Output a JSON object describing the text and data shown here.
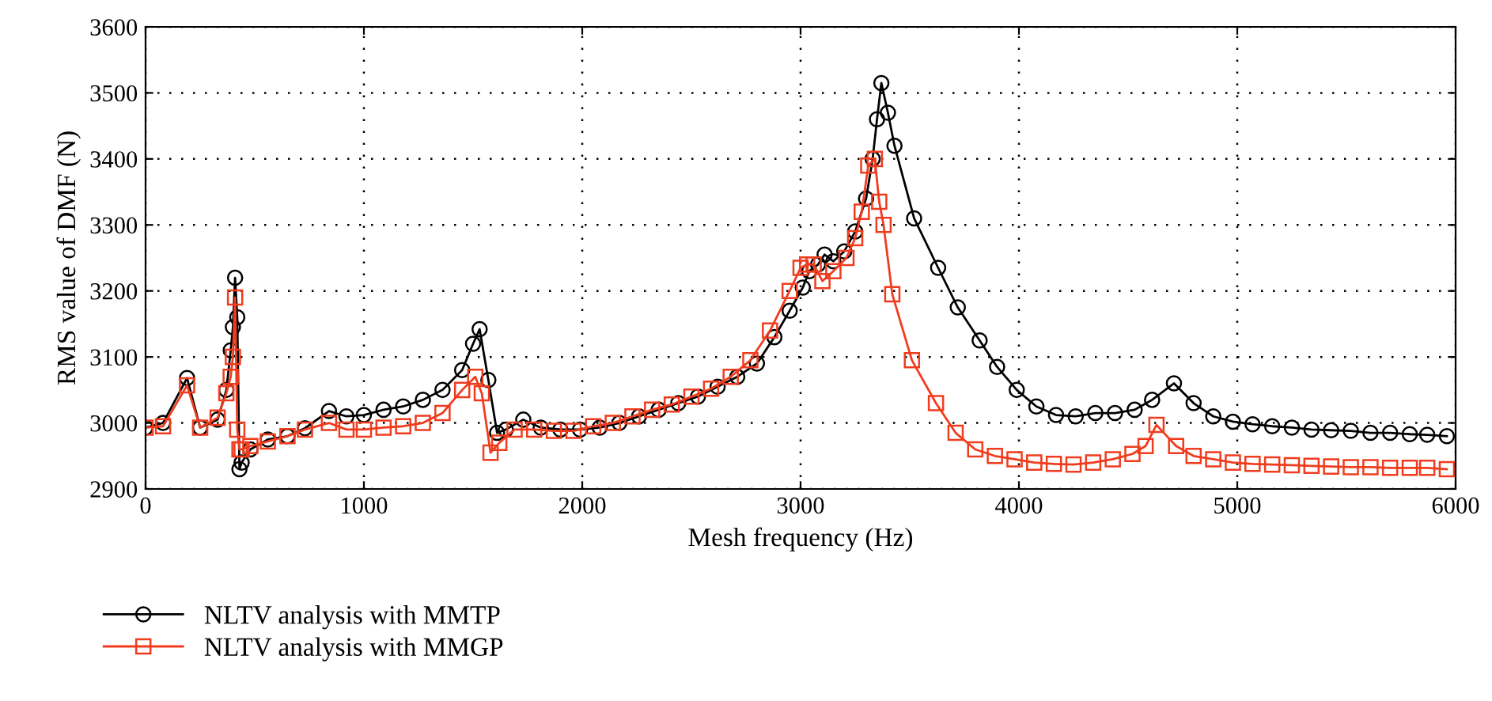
{
  "chart_data": {
    "type": "line",
    "xlabel": "Mesh frequency (Hz)",
    "ylabel": "RMS value of DMF (N)",
    "xlim": [
      0,
      6000
    ],
    "xticks": [
      0,
      1000,
      2000,
      3000,
      4000,
      5000,
      6000
    ],
    "ylim": [
      2900,
      3600
    ],
    "yticks": [
      2900,
      3000,
      3100,
      3200,
      3300,
      3400,
      3500,
      3600
    ],
    "grid": true,
    "legend": "bottom",
    "line_style": "solid",
    "series": [
      {
        "name": "NLTV analysis with MMTP",
        "color": "#000000",
        "marker": "circle",
        "x": [
          0,
          80,
          190,
          250,
          330,
          370,
          390,
          400,
          410,
          420,
          430,
          440,
          480,
          560,
          650,
          730,
          840,
          920,
          1000,
          1090,
          1180,
          1270,
          1360,
          1450,
          1500,
          1530,
          1570,
          1610,
          1650,
          1730,
          1810,
          1900,
          1990,
          2080,
          2170,
          2260,
          2350,
          2440,
          2530,
          2620,
          2710,
          2800,
          2880,
          2950,
          3010,
          3040,
          3080,
          3110,
          3150,
          3200,
          3250,
          3300,
          3330,
          3350,
          3370,
          3400,
          3430,
          3520,
          3630,
          3720,
          3820,
          3900,
          3990,
          4080,
          4170,
          4260,
          4350,
          4440,
          4530,
          4610,
          4710,
          4800,
          4890,
          4980,
          5070,
          5160,
          5250,
          5340,
          5430,
          5520,
          5610,
          5700,
          5790,
          5870,
          5960
        ],
        "values": [
          2993,
          3000,
          3068,
          2993,
          3005,
          3050,
          3110,
          3145,
          3220,
          3160,
          2930,
          2940,
          2960,
          2975,
          2980,
          2992,
          3018,
          3010,
          3012,
          3020,
          3025,
          3035,
          3050,
          3080,
          3120,
          3142,
          3065,
          2985,
          2990,
          3005,
          2993,
          2990,
          2990,
          2993,
          3000,
          3010,
          3020,
          3030,
          3040,
          3055,
          3070,
          3090,
          3130,
          3170,
          3205,
          3230,
          3240,
          3255,
          3245,
          3260,
          3290,
          3340,
          3400,
          3460,
          3515,
          3470,
          3420,
          3310,
          3235,
          3175,
          3125,
          3085,
          3050,
          3025,
          3012,
          3010,
          3015,
          3015,
          3020,
          3035,
          3060,
          3030,
          3010,
          3002,
          2998,
          2995,
          2993,
          2990,
          2989,
          2988,
          2985,
          2985,
          2983,
          2982,
          2980
        ]
      },
      {
        "name": "NLTV analysis with MMGP",
        "color": "#f03c1e",
        "marker": "square",
        "x": [
          0,
          80,
          190,
          250,
          330,
          370,
          390,
          400,
          410,
          420,
          430,
          440,
          480,
          560,
          650,
          730,
          840,
          920,
          1000,
          1090,
          1180,
          1270,
          1360,
          1450,
          1510,
          1540,
          1580,
          1620,
          1690,
          1780,
          1870,
          1960,
          2050,
          2140,
          2230,
          2320,
          2410,
          2500,
          2590,
          2680,
          2770,
          2860,
          2950,
          3000,
          3030,
          3060,
          3100,
          3150,
          3210,
          3250,
          3280,
          3310,
          3340,
          3360,
          3380,
          3420,
          3510,
          3620,
          3710,
          3800,
          3890,
          3980,
          4070,
          4160,
          4250,
          4340,
          4430,
          4520,
          4580,
          4630,
          4720,
          4800,
          4890,
          4980,
          5070,
          5160,
          5250,
          5340,
          5430,
          5520,
          5610,
          5700,
          5790,
          5870,
          5960
        ],
        "values": [
          2993,
          2995,
          3057,
          2993,
          3008,
          3045,
          3070,
          3100,
          3190,
          2990,
          2960,
          2960,
          2965,
          2972,
          2980,
          2990,
          3000,
          2990,
          2990,
          2993,
          2995,
          3000,
          3015,
          3050,
          3070,
          3045,
          2955,
          2970,
          2990,
          2990,
          2988,
          2988,
          2995,
          3000,
          3010,
          3020,
          3028,
          3040,
          3052,
          3070,
          3095,
          3140,
          3200,
          3235,
          3240,
          3240,
          3215,
          3230,
          3250,
          3280,
          3320,
          3390,
          3400,
          3335,
          3300,
          3195,
          3095,
          3030,
          2985,
          2960,
          2950,
          2945,
          2940,
          2938,
          2937,
          2940,
          2945,
          2953,
          2965,
          2997,
          2965,
          2950,
          2945,
          2940,
          2938,
          2937,
          2936,
          2935,
          2934,
          2933,
          2933,
          2932,
          2932,
          2932,
          2930
        ]
      }
    ]
  }
}
